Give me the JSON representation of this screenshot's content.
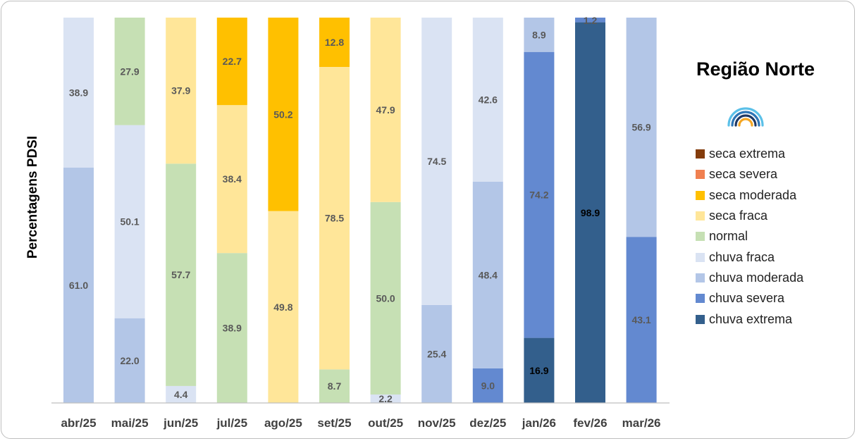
{
  "chart_data": {
    "type": "bar",
    "stacked": true,
    "title": "Região Norte",
    "ylabel": "Percentagens PDSI",
    "xlabel": "",
    "ylim": [
      0,
      100
    ],
    "grid": false,
    "legend_position": "right",
    "categories": [
      "abr/25",
      "mai/25",
      "jun/25",
      "jul/25",
      "ago/25",
      "set/25",
      "out/25",
      "nov/25",
      "dez/25",
      "jan/26",
      "fev/26",
      "mar/26"
    ],
    "series": [
      {
        "name": "chuva extrema",
        "color": "#335f8c",
        "label_color": "#000000",
        "values": [
          0,
          0,
          0,
          0,
          0,
          0,
          0,
          0,
          0,
          16.9,
          98.9,
          0
        ]
      },
      {
        "name": "chuva severa",
        "color": "#6389d0",
        "label_color": "#595959",
        "values": [
          0,
          0,
          0,
          0,
          0,
          0,
          0,
          0,
          9.0,
          74.2,
          1.2,
          43.1
        ]
      },
      {
        "name": "chuva moderada",
        "color": "#b3c6e7",
        "label_color": "#595959",
        "values": [
          61.0,
          22.0,
          0,
          0,
          0,
          0,
          0,
          25.4,
          48.4,
          8.9,
          0,
          56.9
        ]
      },
      {
        "name": "chuva fraca",
        "color": "#dae3f3",
        "label_color": "#595959",
        "values": [
          38.9,
          50.1,
          4.4,
          0,
          0,
          0,
          2.2,
          74.5,
          42.6,
          0,
          0,
          0
        ]
      },
      {
        "name": "normal",
        "color": "#c6e0b4",
        "label_color": "#595959",
        "values": [
          0,
          27.9,
          57.7,
          38.9,
          0,
          8.7,
          50.0,
          0,
          0,
          0,
          0,
          0
        ]
      },
      {
        "name": "seca fraca",
        "color": "#ffe699",
        "label_color": "#595959",
        "values": [
          0,
          0,
          37.9,
          38.4,
          49.8,
          78.5,
          47.9,
          0,
          0,
          0,
          0,
          0
        ]
      },
      {
        "name": "seca moderada",
        "color": "#ffc000",
        "label_color": "#595959",
        "values": [
          0,
          0,
          0,
          22.7,
          50.2,
          12.8,
          0,
          0,
          0,
          0,
          0,
          0
        ]
      },
      {
        "name": "seca severa",
        "color": "#f08050",
        "label_color": "#595959",
        "values": [
          0,
          0,
          0,
          0,
          0,
          0,
          0,
          0,
          0,
          0,
          0,
          0
        ]
      },
      {
        "name": "seca extrema",
        "color": "#843c0c",
        "label_color": "#595959",
        "values": [
          0,
          0,
          0,
          0,
          0,
          0,
          0,
          0,
          0,
          0,
          0,
          0
        ]
      }
    ],
    "legend_order": [
      "seca extrema",
      "seca severa",
      "seca moderada",
      "seca fraca",
      "normal",
      "chuva fraca",
      "chuva moderada",
      "chuva severa",
      "chuva extrema"
    ],
    "logo_icon": "rainbow-arcs-icon"
  }
}
